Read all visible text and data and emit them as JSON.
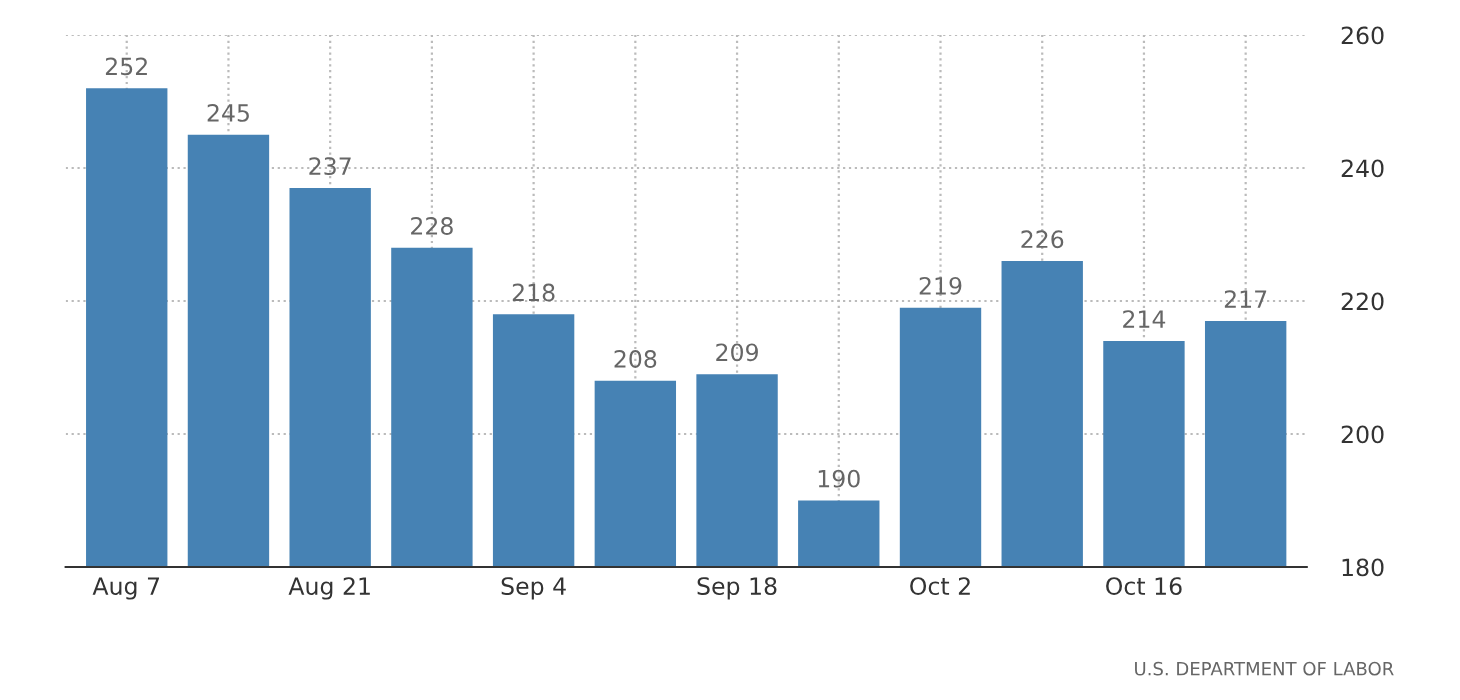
{
  "chart_data": {
    "type": "bar",
    "categories": [
      "Aug 7",
      null,
      "Aug 21",
      null,
      "Sep 4",
      null,
      "Sep 18",
      null,
      "Oct 2",
      null,
      "Oct 16",
      null
    ],
    "values": [
      252,
      245,
      237,
      228,
      218,
      208,
      209,
      190,
      219,
      226,
      214,
      217
    ],
    "color": "#4682b4",
    "ylim": [
      180,
      260
    ],
    "yticks": [
      180,
      200,
      220,
      240,
      260
    ],
    "grid": true,
    "data_labels": true,
    "annotations": [
      "U.S. DEPARTMENT OF LABOR"
    ]
  }
}
